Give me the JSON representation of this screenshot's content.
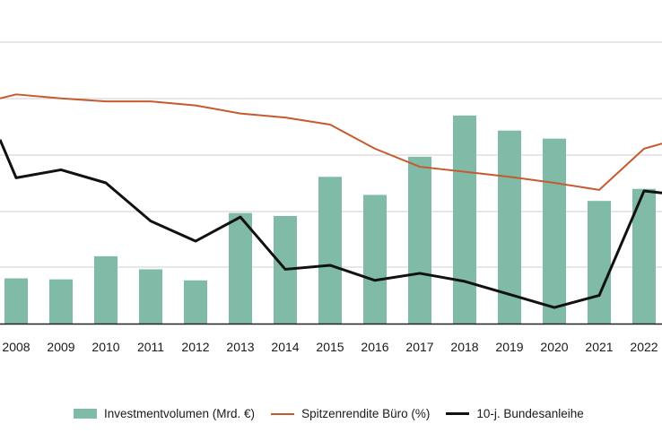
{
  "chart_data": {
    "type": "bar",
    "categories": [
      "2008",
      "2009",
      "2010",
      "2011",
      "2012",
      "2013",
      "2014",
      "2015",
      "2016",
      "2017",
      "2018",
      "2019",
      "2020",
      "2021",
      "2022"
    ],
    "series": [
      {
        "name": "Investmentvolumen (Mrd. €)",
        "kind": "bar",
        "color": "#7fbba6",
        "values": [
          4.5,
          4.4,
          6.7,
          5.4,
          4.3,
          11.0,
          10.7,
          14.6,
          12.8,
          16.6,
          20.7,
          19.2,
          18.4,
          12.2,
          13.4
        ]
      },
      {
        "name": "Spitzenrendite Büro (%)",
        "kind": "line",
        "color": "#c65a2e",
        "values": [
          22.8,
          22.4,
          22.1,
          22.1,
          21.7,
          20.9,
          20.5,
          19.8,
          17.4,
          15.6,
          15.1,
          14.6,
          14.0,
          13.3,
          17.4
        ]
      },
      {
        "name": "10-j. Bundesanleihe",
        "kind": "line",
        "color": "#111111",
        "values": [
          14.5,
          15.3,
          14.0,
          10.2,
          8.2,
          10.6,
          5.4,
          5.8,
          4.3,
          5.0,
          4.2,
          2.9,
          1.6,
          2.8,
          13.2
        ]
      }
    ],
    "ylim": [
      0,
      28
    ],
    "grid": true,
    "legend_position": "bottom"
  },
  "colors": {
    "bar": "#7fbba6",
    "yield_line": "#c65a2e",
    "bund_line": "#111111",
    "grid": "#cfcfcf",
    "axis": "#222222"
  }
}
